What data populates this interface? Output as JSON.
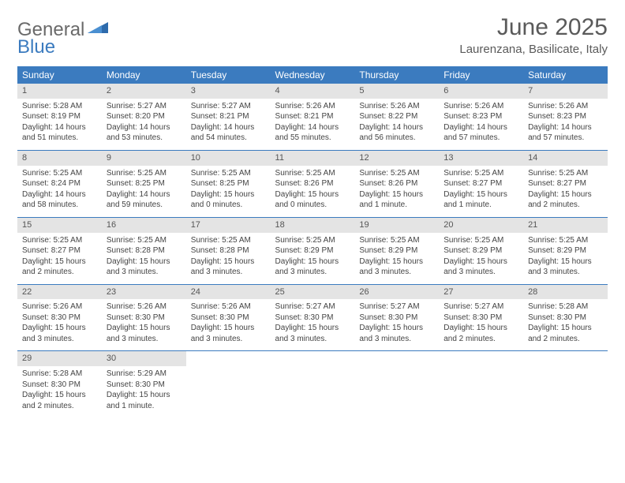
{
  "logo": {
    "text1": "General",
    "text2": "Blue"
  },
  "title": "June 2025",
  "location": "Laurenzana, Basilicate, Italy",
  "colors": {
    "header_bg": "#3b7bbf",
    "header_text": "#ffffff",
    "daynum_bg": "#e4e4e4",
    "border": "#3b7bbf",
    "body_text": "#444444",
    "title_text": "#5a5a5a",
    "logo_gray": "#6a6a6a",
    "logo_blue": "#3b7bbf"
  },
  "day_headers": [
    "Sunday",
    "Monday",
    "Tuesday",
    "Wednesday",
    "Thursday",
    "Friday",
    "Saturday"
  ],
  "weeks": [
    [
      {
        "n": "1",
        "sr": "Sunrise: 5:28 AM",
        "ss": "Sunset: 8:19 PM",
        "d1": "Daylight: 14 hours",
        "d2": "and 51 minutes."
      },
      {
        "n": "2",
        "sr": "Sunrise: 5:27 AM",
        "ss": "Sunset: 8:20 PM",
        "d1": "Daylight: 14 hours",
        "d2": "and 53 minutes."
      },
      {
        "n": "3",
        "sr": "Sunrise: 5:27 AM",
        "ss": "Sunset: 8:21 PM",
        "d1": "Daylight: 14 hours",
        "d2": "and 54 minutes."
      },
      {
        "n": "4",
        "sr": "Sunrise: 5:26 AM",
        "ss": "Sunset: 8:21 PM",
        "d1": "Daylight: 14 hours",
        "d2": "and 55 minutes."
      },
      {
        "n": "5",
        "sr": "Sunrise: 5:26 AM",
        "ss": "Sunset: 8:22 PM",
        "d1": "Daylight: 14 hours",
        "d2": "and 56 minutes."
      },
      {
        "n": "6",
        "sr": "Sunrise: 5:26 AM",
        "ss": "Sunset: 8:23 PM",
        "d1": "Daylight: 14 hours",
        "d2": "and 57 minutes."
      },
      {
        "n": "7",
        "sr": "Sunrise: 5:26 AM",
        "ss": "Sunset: 8:23 PM",
        "d1": "Daylight: 14 hours",
        "d2": "and 57 minutes."
      }
    ],
    [
      {
        "n": "8",
        "sr": "Sunrise: 5:25 AM",
        "ss": "Sunset: 8:24 PM",
        "d1": "Daylight: 14 hours",
        "d2": "and 58 minutes."
      },
      {
        "n": "9",
        "sr": "Sunrise: 5:25 AM",
        "ss": "Sunset: 8:25 PM",
        "d1": "Daylight: 14 hours",
        "d2": "and 59 minutes."
      },
      {
        "n": "10",
        "sr": "Sunrise: 5:25 AM",
        "ss": "Sunset: 8:25 PM",
        "d1": "Daylight: 15 hours",
        "d2": "and 0 minutes."
      },
      {
        "n": "11",
        "sr": "Sunrise: 5:25 AM",
        "ss": "Sunset: 8:26 PM",
        "d1": "Daylight: 15 hours",
        "d2": "and 0 minutes."
      },
      {
        "n": "12",
        "sr": "Sunrise: 5:25 AM",
        "ss": "Sunset: 8:26 PM",
        "d1": "Daylight: 15 hours",
        "d2": "and 1 minute."
      },
      {
        "n": "13",
        "sr": "Sunrise: 5:25 AM",
        "ss": "Sunset: 8:27 PM",
        "d1": "Daylight: 15 hours",
        "d2": "and 1 minute."
      },
      {
        "n": "14",
        "sr": "Sunrise: 5:25 AM",
        "ss": "Sunset: 8:27 PM",
        "d1": "Daylight: 15 hours",
        "d2": "and 2 minutes."
      }
    ],
    [
      {
        "n": "15",
        "sr": "Sunrise: 5:25 AM",
        "ss": "Sunset: 8:27 PM",
        "d1": "Daylight: 15 hours",
        "d2": "and 2 minutes."
      },
      {
        "n": "16",
        "sr": "Sunrise: 5:25 AM",
        "ss": "Sunset: 8:28 PM",
        "d1": "Daylight: 15 hours",
        "d2": "and 3 minutes."
      },
      {
        "n": "17",
        "sr": "Sunrise: 5:25 AM",
        "ss": "Sunset: 8:28 PM",
        "d1": "Daylight: 15 hours",
        "d2": "and 3 minutes."
      },
      {
        "n": "18",
        "sr": "Sunrise: 5:25 AM",
        "ss": "Sunset: 8:29 PM",
        "d1": "Daylight: 15 hours",
        "d2": "and 3 minutes."
      },
      {
        "n": "19",
        "sr": "Sunrise: 5:25 AM",
        "ss": "Sunset: 8:29 PM",
        "d1": "Daylight: 15 hours",
        "d2": "and 3 minutes."
      },
      {
        "n": "20",
        "sr": "Sunrise: 5:25 AM",
        "ss": "Sunset: 8:29 PM",
        "d1": "Daylight: 15 hours",
        "d2": "and 3 minutes."
      },
      {
        "n": "21",
        "sr": "Sunrise: 5:25 AM",
        "ss": "Sunset: 8:29 PM",
        "d1": "Daylight: 15 hours",
        "d2": "and 3 minutes."
      }
    ],
    [
      {
        "n": "22",
        "sr": "Sunrise: 5:26 AM",
        "ss": "Sunset: 8:30 PM",
        "d1": "Daylight: 15 hours",
        "d2": "and 3 minutes."
      },
      {
        "n": "23",
        "sr": "Sunrise: 5:26 AM",
        "ss": "Sunset: 8:30 PM",
        "d1": "Daylight: 15 hours",
        "d2": "and 3 minutes."
      },
      {
        "n": "24",
        "sr": "Sunrise: 5:26 AM",
        "ss": "Sunset: 8:30 PM",
        "d1": "Daylight: 15 hours",
        "d2": "and 3 minutes."
      },
      {
        "n": "25",
        "sr": "Sunrise: 5:27 AM",
        "ss": "Sunset: 8:30 PM",
        "d1": "Daylight: 15 hours",
        "d2": "and 3 minutes."
      },
      {
        "n": "26",
        "sr": "Sunrise: 5:27 AM",
        "ss": "Sunset: 8:30 PM",
        "d1": "Daylight: 15 hours",
        "d2": "and 3 minutes."
      },
      {
        "n": "27",
        "sr": "Sunrise: 5:27 AM",
        "ss": "Sunset: 8:30 PM",
        "d1": "Daylight: 15 hours",
        "d2": "and 2 minutes."
      },
      {
        "n": "28",
        "sr": "Sunrise: 5:28 AM",
        "ss": "Sunset: 8:30 PM",
        "d1": "Daylight: 15 hours",
        "d2": "and 2 minutes."
      }
    ],
    [
      {
        "n": "29",
        "sr": "Sunrise: 5:28 AM",
        "ss": "Sunset: 8:30 PM",
        "d1": "Daylight: 15 hours",
        "d2": "and 2 minutes."
      },
      {
        "n": "30",
        "sr": "Sunrise: 5:29 AM",
        "ss": "Sunset: 8:30 PM",
        "d1": "Daylight: 15 hours",
        "d2": "and 1 minute."
      },
      {
        "empty": true
      },
      {
        "empty": true
      },
      {
        "empty": true
      },
      {
        "empty": true
      },
      {
        "empty": true
      }
    ]
  ]
}
